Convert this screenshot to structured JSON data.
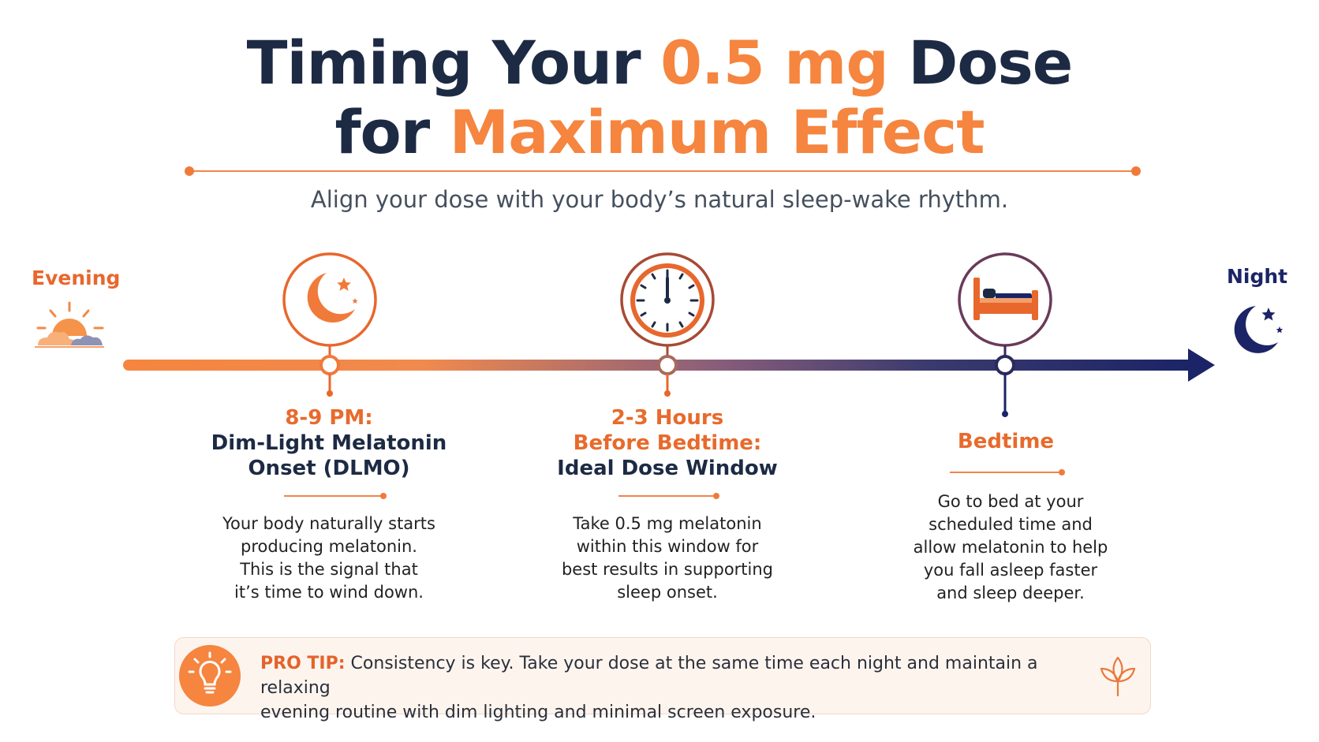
{
  "title": {
    "line1_part1": "Timing Your ",
    "line1_accent": "0.5 mg",
    "line1_part2": " Dose",
    "line2_part1": "for ",
    "line2_accent": "Maximum Effect"
  },
  "subtitle": "Align your dose with your body’s natural sleep-wake rhythm.",
  "timeline": {
    "start_label": "Evening",
    "end_label": "Night",
    "start_color": "#f5853f",
    "end_color": "#1b2466"
  },
  "steps": [
    {
      "icon": "moon-stars-icon",
      "time": "8-9 PM:",
      "name_line1": "Dim-Light Melatonin",
      "name_line2": "Onset (DLMO)",
      "desc": [
        "Your body naturally starts",
        "producing melatonin.",
        "This is the signal that",
        "it’s time to wind down."
      ]
    },
    {
      "icon": "clock-icon",
      "time_line1": "2-3 Hours",
      "time_line2": "Before Bedtime:",
      "name": "Ideal Dose Window",
      "desc": [
        "Take 0.5 mg melatonin",
        "within this window for",
        "best results in supporting",
        "sleep onset."
      ]
    },
    {
      "icon": "bed-icon",
      "time": "Bedtime",
      "desc": [
        "Go to bed at your",
        "scheduled time and",
        "allow melatonin to help",
        "you fall asleep faster",
        "and sleep deeper."
      ]
    }
  ],
  "pro_tip": {
    "label": "PRO TIP:",
    "text_line1": " Consistency is key. Take your dose at the same time each night and maintain a relaxing",
    "text_line2": "evening routine with dim lighting and minimal screen exposure."
  },
  "colors": {
    "accent": "#f5853f",
    "navy": "#1d2a44",
    "deep_navy": "#1b2466"
  }
}
